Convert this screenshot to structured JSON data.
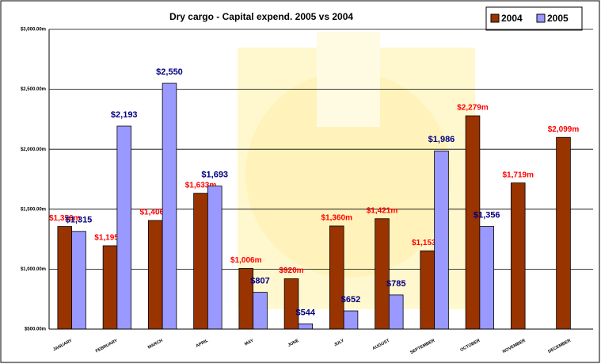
{
  "chart_data": {
    "type": "bar",
    "title": "Dry cargo - Capital expend. 2005 vs 2004",
    "categories": [
      "JANUARY",
      "FEBRUARY",
      "MARCH",
      "APRIL",
      "MAY",
      "JUNE",
      "JULY",
      "AUGUST",
      "SEPTEMBER",
      "OCTOBER",
      "NOVEMBER",
      "DECEMBER"
    ],
    "series": [
      {
        "name": "2004",
        "color": "#993300",
        "values": [
          1356,
          1195,
          1406,
          1633,
          1006,
          920,
          1360,
          1421,
          1153,
          2279,
          1719,
          2099
        ],
        "value_labels": [
          "$1,356m",
          "$1,195m",
          "$1,406m",
          "$1,633m",
          "$1,006m",
          "$920m",
          "$1,360m",
          "$1,421m",
          "$1,153m",
          "$2,279m",
          "$1,719m",
          "$2,099m"
        ]
      },
      {
        "name": "2005",
        "color": "#9999ff",
        "values": [
          1315,
          2193,
          2550,
          1693,
          807,
          544,
          652,
          785,
          1986,
          1356,
          null,
          null
        ],
        "value_labels": [
          "$1,315",
          "$2,193",
          "$2,550",
          "$1,693",
          "$807",
          "$544",
          "$652",
          "$785",
          "$1,986",
          "$1,356",
          null,
          null
        ]
      }
    ],
    "ylim": [
      500,
      3000
    ],
    "yticks": [
      {
        "value": 500,
        "label": "$500.00m"
      },
      {
        "value": 1000,
        "label": "$1,000.00m"
      },
      {
        "value": 1500,
        "label": "$1,500.00m"
      },
      {
        "value": 2000,
        "label": "$2,000.00m"
      },
      {
        "value": 2500,
        "label": "$2,500.00m"
      },
      {
        "value": 3000,
        "label": "$3,000.00m"
      }
    ],
    "grid": true,
    "legend": "top-right"
  }
}
